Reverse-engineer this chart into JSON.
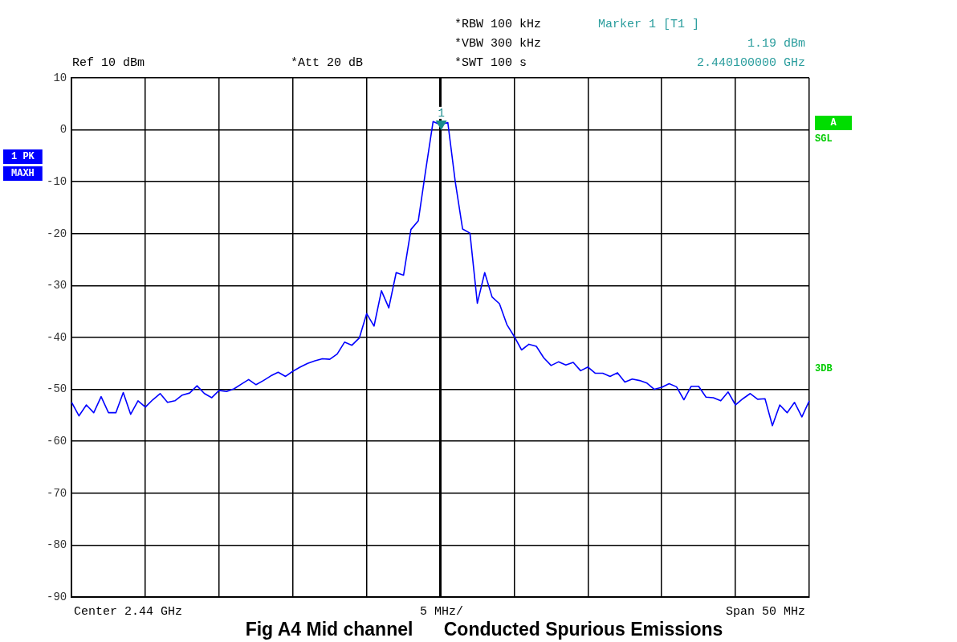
{
  "chart_data": {
    "type": "line",
    "title": "Fig A4 Mid channel      Conducted Spurious Emissions",
    "annotations": [
      "*RBW 100 kHz",
      "*VBW 300 kHz",
      "*SWT 100 s",
      "Marker 1 [T1 ]",
      "1.19 dBm",
      "2.440100000 GHz",
      "Ref 10 dBm",
      "*Att 20 dB",
      "Center 2.44 GHz",
      "5 MHz/",
      "Span 50 MHz",
      "1 PK",
      "MAXH",
      "A",
      "SGL",
      "3DB",
      {
        "text": "1",
        "y": 1.19
      }
    ],
    "categories": [
      null,
      null,
      null,
      null,
      null,
      null,
      null,
      null,
      null,
      null,
      null,
      null,
      null,
      null,
      null,
      null,
      null,
      null,
      null,
      null,
      null,
      null,
      null,
      null,
      null,
      null,
      null,
      null,
      null,
      null,
      null,
      null,
      null,
      null,
      null,
      null,
      null,
      null,
      null,
      null,
      null,
      null,
      null,
      null,
      null,
      null,
      null,
      null,
      null,
      null,
      null,
      null,
      null,
      null,
      null,
      null,
      null,
      null,
      null,
      null,
      null,
      null,
      null,
      null,
      null,
      null,
      null,
      null,
      null,
      null,
      null,
      null,
      null,
      null,
      null,
      null,
      null,
      null,
      null,
      null,
      null,
      null,
      null,
      null,
      null,
      null,
      null,
      null,
      null,
      null,
      null,
      null,
      null,
      null,
      null,
      null,
      null,
      null,
      null,
      null,
      null
    ],
    "series": [
      {
        "color": "#0000ff",
        "values": [
          -52.5,
          -55.1,
          -53,
          -54.5,
          -51.4,
          -54.5,
          -54.5,
          -50.6,
          -54.8,
          -52.2,
          -53.4,
          -52,
          -50.8,
          -52.5,
          -52.2,
          -51.1,
          -50.7,
          -49.3,
          -50.8,
          -51.6,
          -50.2,
          -50.4,
          -49.9,
          -49,
          -48.1,
          -49.1,
          -48.3,
          -47.4,
          -46.7,
          -47.5,
          -46.5,
          -45.7,
          -45,
          -44.5,
          -44.1,
          -44.2,
          -43.2,
          -40.9,
          -41.5,
          -40.1,
          -35.4,
          -37.8,
          -31,
          -34.3,
          -27.5,
          -28,
          -19.2,
          -17.5,
          -7.8,
          1.6,
          1,
          1.4,
          -9.9,
          -19.1,
          -19.9,
          -33.4,
          -27.5,
          -32.2,
          -33.5,
          -37.5,
          -39.8,
          -42.4,
          -41.3,
          -41.7,
          -43.9,
          -45.4,
          -44.7,
          -45.3,
          -44.8,
          -46.4,
          -45.7,
          -46.9,
          -46.9,
          -47.5,
          -46.8,
          -48.6,
          -48,
          -48.3,
          -48.8,
          -50,
          -49.6,
          -48.9,
          -49.5,
          -52,
          -49.4,
          -49.4,
          -51.5,
          -51.6,
          -52.2,
          -50.5,
          -53,
          -51.8,
          -50.8,
          -51.9,
          -51.8,
          -57,
          -53,
          -54.5,
          -52.5,
          -55.3,
          -52.2
        ]
      }
    ],
    "ylim": [
      -90,
      10
    ],
    "yticks": [
      10,
      0,
      -10,
      -20,
      -30,
      -40,
      -50,
      -60,
      -70,
      -80,
      -90
    ],
    "grid": true,
    "tick_labels": "y",
    "marker": "none",
    "line_style": "solid"
  }
}
